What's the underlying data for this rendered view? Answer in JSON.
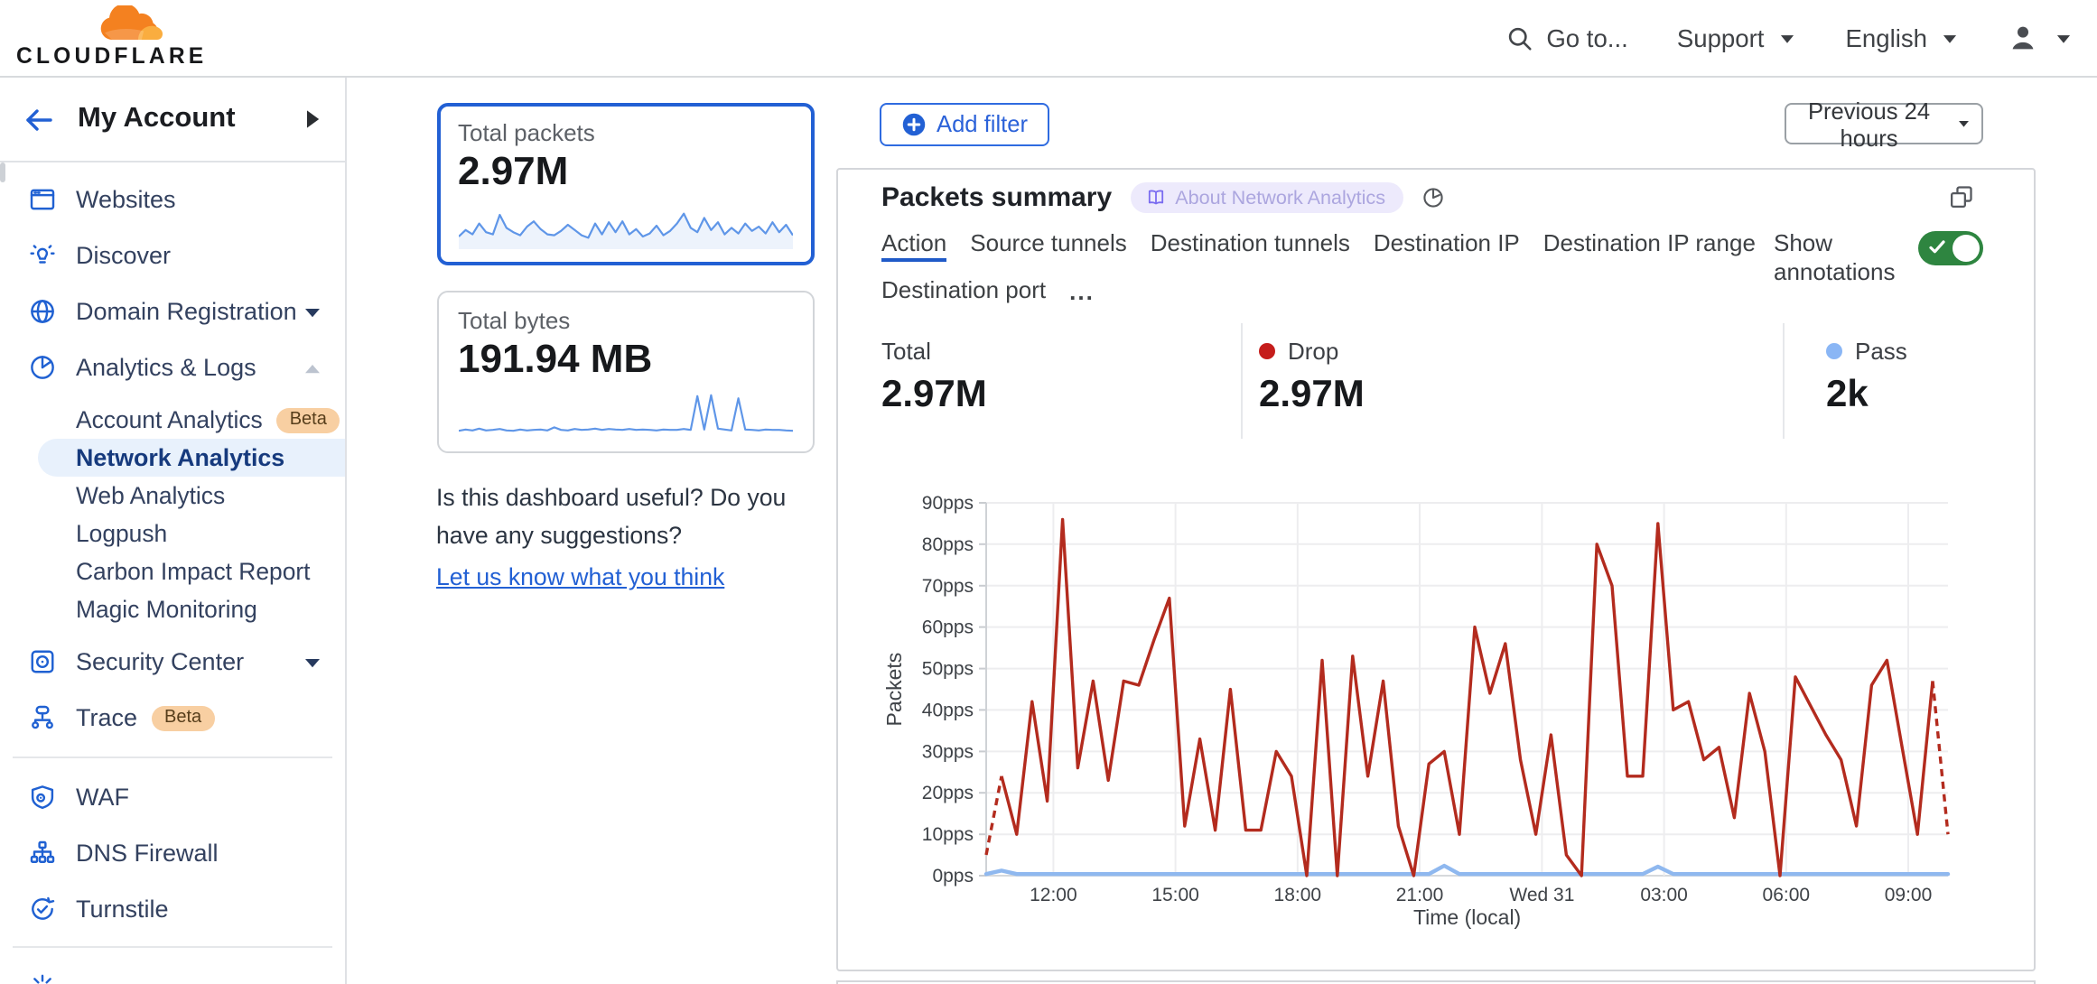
{
  "colors": {
    "accent_blue": "#2260d4",
    "sidebar_icon_blue": "#2061d2",
    "selected_pill_bg": "#e8f1fc",
    "drop_red": "#b32b1e",
    "drop_dot": "#c51d1b",
    "pass_blue": "#8fb8ef",
    "toggle_green": "#2e8540",
    "beta_bg": "#f8cfa2",
    "brand_orange": "#f48120",
    "brand_orange_light": "#faad3f"
  },
  "header": {
    "logo_text": "CLOUDFLARE",
    "goto_label": "Go to...",
    "support_label": "Support",
    "language_label": "English"
  },
  "sidebar": {
    "account_label": "My Account",
    "items": [
      {
        "icon": "browser-window",
        "label": "Websites"
      },
      {
        "icon": "lightbulb",
        "label": "Discover"
      },
      {
        "icon": "globe",
        "label": "Domain Registration",
        "caret": "down"
      },
      {
        "icon": "pie-chart",
        "label": "Analytics & Logs",
        "caret": "up"
      },
      {
        "sub": true,
        "label": "Account Analytics",
        "badge": "Beta"
      },
      {
        "sub": true,
        "label": "Network Analytics",
        "selected": true
      },
      {
        "sub": true,
        "label": "Web Analytics"
      },
      {
        "sub": true,
        "label": "Logpush"
      },
      {
        "sub": true,
        "label": "Carbon Impact Report"
      },
      {
        "sub": true,
        "label": "Magic Monitoring"
      },
      {
        "icon": "safe",
        "label": "Security Center",
        "caret": "down"
      },
      {
        "icon": "tree",
        "label": "Trace",
        "badge": "Beta"
      },
      {
        "divider": true
      },
      {
        "icon": "shield-gear",
        "label": "WAF"
      },
      {
        "icon": "dns-tree",
        "label": "DNS Firewall"
      },
      {
        "icon": "refresh-check",
        "label": "Turnstile"
      },
      {
        "divider": true
      },
      {
        "icon": "sunburst",
        "label": "",
        "partial": true
      }
    ]
  },
  "summary_cards": [
    {
      "label": "Total packets",
      "value": "2.97M",
      "selected": true,
      "sparkline": [
        25,
        40,
        30,
        55,
        35,
        30,
        75,
        45,
        35,
        28,
        48,
        60,
        42,
        30,
        28,
        38,
        52,
        40,
        28,
        22,
        55,
        30,
        58,
        35,
        60,
        30,
        42,
        25,
        32,
        50,
        28,
        38,
        55,
        78,
        45,
        35,
        68,
        40,
        58,
        30,
        45,
        32,
        55,
        38,
        48,
        32,
        58,
        35,
        52,
        28
      ]
    },
    {
      "label": "Total bytes",
      "value": "191.94 MB",
      "selected": false,
      "sparkline": [
        10,
        13,
        11,
        15,
        11,
        12,
        14,
        11,
        10,
        13,
        11,
        12,
        13,
        11,
        18,
        12,
        11,
        14,
        12,
        13,
        15,
        12,
        14,
        13,
        12,
        14,
        12,
        13,
        12,
        11,
        13,
        12,
        12,
        14,
        12,
        90,
        13,
        92,
        15,
        13,
        11,
        85,
        13,
        12,
        11,
        13,
        12,
        12,
        11,
        10
      ]
    }
  ],
  "feedback": {
    "text": "Is this dashboard useful? Do you have any suggestions?",
    "link_label": "Let us know what you think"
  },
  "toolbar": {
    "add_filter_label": "Add filter",
    "time_range_label": "Previous 24 hours"
  },
  "panel": {
    "title": "Packets summary",
    "about_label": "About Network Analytics",
    "tabs": [
      "Action",
      "Source tunnels",
      "Destination tunnels",
      "Destination IP",
      "Destination IP range",
      "Destination port"
    ],
    "active_tab": "Action",
    "more_label": "...",
    "annotations_label": "Show annotations",
    "annotations_on": true,
    "stats": [
      {
        "label": "Total",
        "value": "2.97M"
      },
      {
        "label": "Drop",
        "value": "2.97M",
        "dot": "#c51d1b"
      },
      {
        "label": "Pass",
        "value": "2k",
        "dot": "#8ab6f5"
      }
    ]
  },
  "chart_data": {
    "type": "line",
    "title": "Packets summary",
    "xlabel": "Time (local)",
    "ylabel": "Packets",
    "y_unit": "pps",
    "ylim": [
      0,
      90
    ],
    "y_ticks": [
      0,
      10,
      20,
      30,
      40,
      50,
      60,
      70,
      80,
      90
    ],
    "x_tick_labels": [
      "12:00",
      "15:00",
      "18:00",
      "21:00",
      "Wed 31",
      "03:00",
      "06:00",
      "09:00"
    ],
    "x_tick_positions": [
      4.4,
      12.4,
      20.4,
      28.4,
      36.4,
      44.4,
      52.4,
      60.4
    ],
    "grid": true,
    "legend_position": "stats row above chart",
    "series": [
      {
        "name": "Drop",
        "color": "#b32b1e",
        "dashed_head": 1,
        "dashed_tail": 1,
        "values": [
          5,
          24,
          10,
          42,
          18,
          86,
          26,
          47,
          23,
          47,
          46,
          57,
          67,
          12,
          33,
          11,
          45,
          11,
          11,
          30,
          24,
          0,
          52,
          0,
          53,
          24,
          47,
          12,
          0,
          27,
          30,
          10,
          60,
          44,
          56,
          28,
          10,
          34,
          5,
          0,
          80,
          70,
          24,
          24,
          85,
          40,
          42,
          28,
          31,
          14,
          44,
          30,
          0,
          48,
          41,
          34,
          28,
          12,
          46,
          52,
          31,
          10,
          47,
          10
        ]
      },
      {
        "name": "Pass",
        "color": "#8fb8ef",
        "values": [
          0.4,
          1.2,
          0.4,
          0.4,
          0.4,
          0.4,
          0.4,
          0.4,
          0.4,
          0.4,
          0.4,
          0.4,
          0.4,
          0.4,
          0.4,
          0.4,
          0.4,
          0.4,
          0.4,
          0.4,
          0.4,
          0.4,
          0.4,
          0.4,
          0.4,
          0.4,
          0.4,
          0.4,
          0.4,
          0.4,
          2.4,
          0.4,
          0.4,
          0.4,
          0.4,
          0.4,
          0.4,
          0.4,
          0.4,
          0.4,
          0.4,
          0.4,
          0.4,
          0.4,
          2.2,
          0.4,
          0.4,
          0.4,
          0.4,
          0.4,
          0.4,
          0.4,
          0.4,
          0.4,
          0.4,
          0.4,
          0.4,
          0.4,
          0.4,
          0.4,
          0.4,
          0.4,
          0.4,
          0.4
        ]
      }
    ]
  }
}
